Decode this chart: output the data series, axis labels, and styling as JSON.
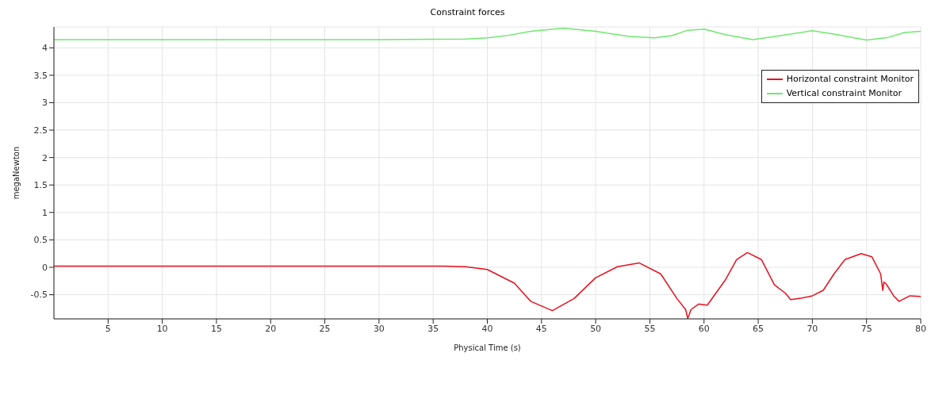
{
  "chart_data": {
    "type": "line",
    "title": "Constraint forces",
    "xlabel": "Physical Time (s)",
    "ylabel": "megaNewton",
    "xlim": [
      0,
      80
    ],
    "xticks": [
      5,
      10,
      15,
      20,
      25,
      30,
      35,
      40,
      45,
      50,
      55,
      60,
      65,
      70,
      75,
      80
    ],
    "ylim": [
      -0.94,
      4.38
    ],
    "yticks": [
      -0.5,
      0,
      0.5,
      1,
      1.5,
      2,
      2.5,
      3,
      3.5,
      4
    ],
    "grid": true,
    "legend": "top right",
    "marker": "none",
    "line_style": "solid",
    "series": [
      {
        "name": "Horizontal constraint Monitor",
        "color": "#e8101e",
        "x": [
          0,
          10,
          20,
          30,
          36,
          38,
          40,
          42.5,
          44,
          46,
          48,
          50,
          52,
          54,
          56,
          57.5,
          58.3,
          58.5,
          58.8,
          59.5,
          60.3,
          62,
          63,
          64,
          65.3,
          66.5,
          67.5,
          68,
          69,
          70,
          71,
          72,
          73,
          74.5,
          75.5,
          76.3,
          76.5,
          76.6,
          76.8,
          77.5,
          78,
          79,
          80
        ],
        "values": [
          0.02,
          0.02,
          0.02,
          0.02,
          0.02,
          0.01,
          -0.04,
          -0.29,
          -0.62,
          -0.79,
          -0.57,
          -0.19,
          0.01,
          0.08,
          -0.12,
          -0.57,
          -0.77,
          -0.93,
          -0.77,
          -0.67,
          -0.69,
          -0.22,
          0.14,
          0.27,
          0.14,
          -0.32,
          -0.47,
          -0.59,
          -0.56,
          -0.52,
          -0.42,
          -0.12,
          0.14,
          0.25,
          0.19,
          -0.12,
          -0.42,
          -0.27,
          -0.3,
          -0.52,
          -0.62,
          -0.52,
          -0.53
        ]
      },
      {
        "name": "Vertical constraint Monitor",
        "color": "#6ee86e",
        "x": [
          0,
          10,
          20,
          30,
          38,
          40,
          42,
          44,
          47,
          50,
          53,
          55.4,
          57,
          58.5,
          60,
          62,
          64.5,
          67,
          70,
          72,
          75,
          77,
          78.5,
          80
        ],
        "values": [
          4.15,
          4.15,
          4.15,
          4.15,
          4.16,
          4.18,
          4.23,
          4.3,
          4.36,
          4.3,
          4.21,
          4.18,
          4.22,
          4.32,
          4.34,
          4.24,
          4.15,
          4.22,
          4.31,
          4.25,
          4.14,
          4.19,
          4.28,
          4.3
        ]
      }
    ]
  }
}
